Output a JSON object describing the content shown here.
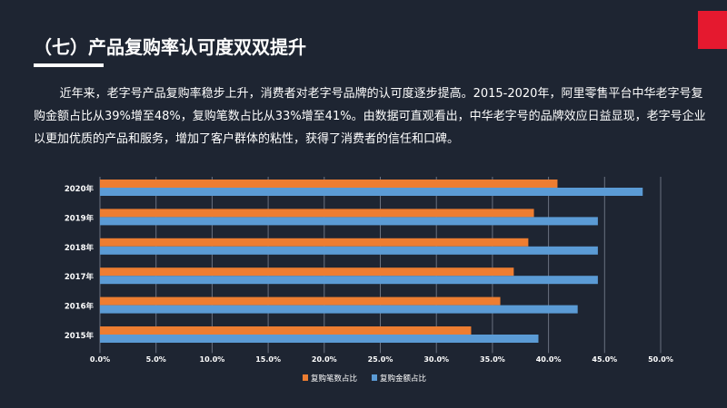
{
  "header": {
    "title": "（七）产品复购率认可度双双提升"
  },
  "body": {
    "paragraph": "近年来，老字号产品复购率稳步上升，消费者对老字号品牌的认可度逐步提高。2015-2020年，阿里零售平台中华老字号复购金额占比从39%增至48%，复购笔数占比从33%增至41%。由数据可直观看出，中华老字号的品牌效应日益显现，老字号企业以更加优质的产品和服务，增加了客户群体的粘性，获得了消费者的信任和口碑。"
  },
  "colors": {
    "accent": "#e5192f",
    "orange": "#ed7d31",
    "blue": "#5b9bd5"
  },
  "chart_data": {
    "type": "bar",
    "orientation": "horizontal",
    "categories": [
      "2020年",
      "2019年",
      "2018年",
      "2017年",
      "2016年",
      "2015年"
    ],
    "series": [
      {
        "name": "复购笔数占比",
        "color": "#ed7d31",
        "values": [
          40.8,
          38.7,
          38.2,
          36.9,
          35.7,
          33.1
        ]
      },
      {
        "name": "复购金额占比",
        "color": "#5b9bd5",
        "values": [
          48.4,
          44.4,
          44.4,
          44.4,
          42.6,
          39.1
        ]
      }
    ],
    "xlim": [
      0,
      50
    ],
    "xticks": [
      "0.0%",
      "5.0%",
      "10.0%",
      "15.0%",
      "20.0%",
      "25.0%",
      "30.0%",
      "35.0%",
      "40.0%",
      "45.0%",
      "50.0%"
    ],
    "grid": true,
    "legend": "bottom"
  }
}
